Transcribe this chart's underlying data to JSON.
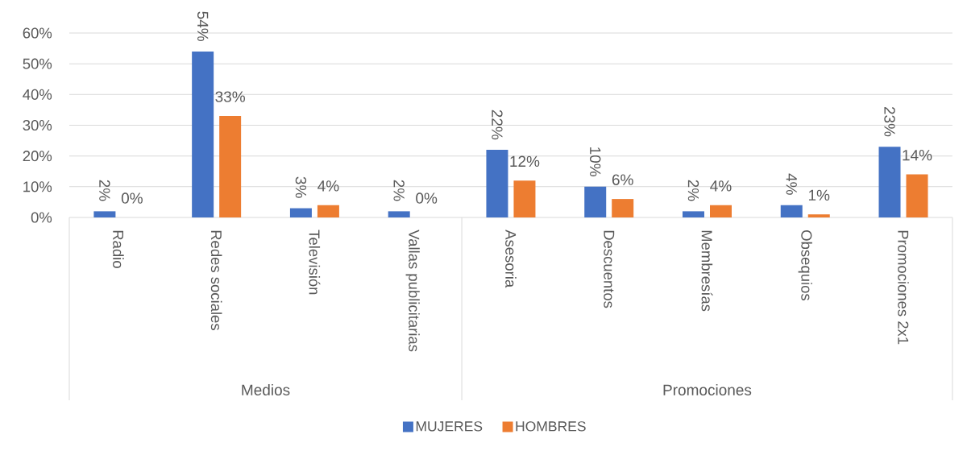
{
  "chart_data": {
    "type": "bar",
    "categories": [
      "Radio",
      "Redes sociales",
      "Televisión",
      "Vallas publicitarias",
      "Asesoria",
      "Descuentos",
      "Membresías",
      "Obsequios",
      "Promociones 2x1"
    ],
    "series": [
      {
        "name": "MUJERES",
        "color": "#4472c4",
        "values": [
          2,
          54,
          3,
          2,
          22,
          10,
          2,
          4,
          23
        ],
        "value_labels": [
          "2%",
          "54%",
          "3%",
          "2%",
          "22%",
          "10%",
          "2%",
          "4%",
          "23%"
        ]
      },
      {
        "name": "HOMBRES",
        "color": "#ed7d31",
        "values": [
          0,
          33,
          4,
          0,
          12,
          6,
          4,
          1,
          14
        ],
        "value_labels": [
          "0%",
          "33%",
          "4%",
          "0%",
          "12%",
          "6%",
          "4%",
          "1%",
          "14%"
        ]
      }
    ],
    "ylim": [
      0,
      60
    ],
    "yticks": [
      {
        "value": 0,
        "label": "0%"
      },
      {
        "value": 10,
        "label": "10%"
      },
      {
        "value": 20,
        "label": "20%"
      },
      {
        "value": 30,
        "label": "30%"
      },
      {
        "value": 40,
        "label": "40%"
      },
      {
        "value": 50,
        "label": "50%"
      },
      {
        "value": 60,
        "label": "60%"
      }
    ],
    "grid": "y",
    "legend": "bottom",
    "annotations": [
      "Medios",
      "Promociones"
    ]
  }
}
